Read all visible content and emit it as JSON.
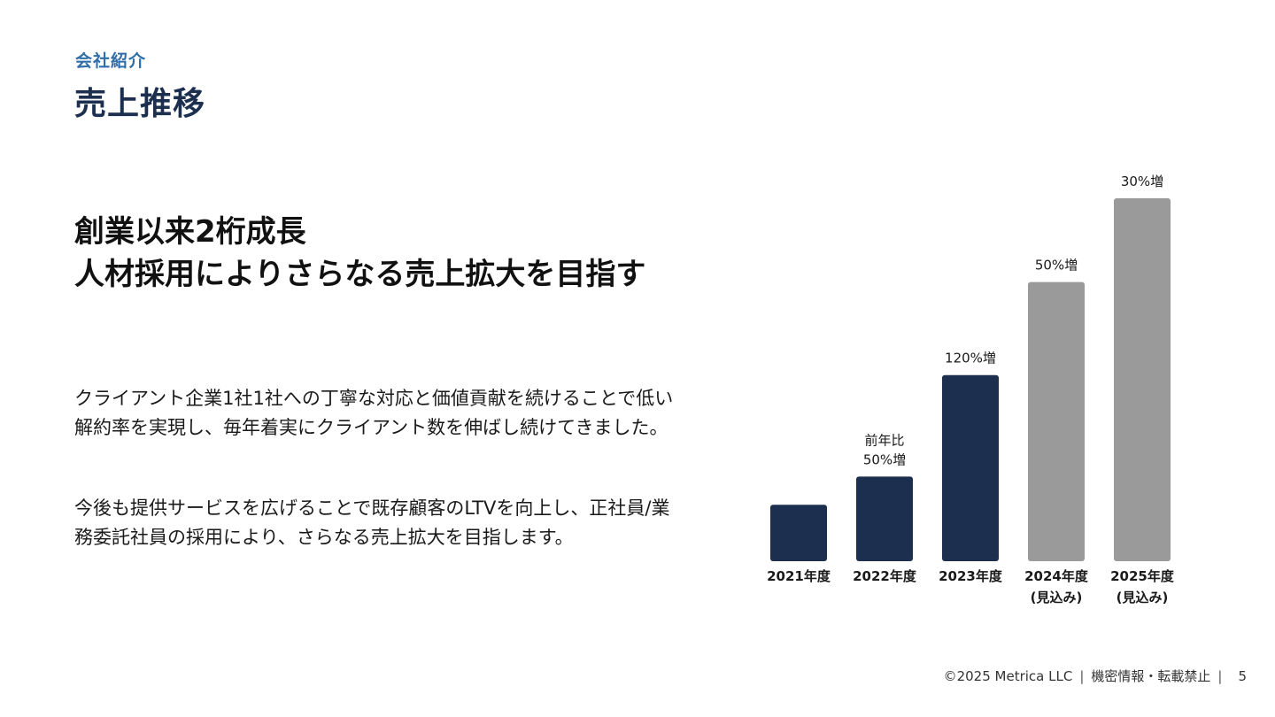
{
  "section_label": "会社紹介",
  "page_title": "売上推移",
  "headline": {
    "line1": "創業以来2桁成長",
    "line2": "人材採用によりさらなる売上拡大を目指す"
  },
  "body": {
    "p1": "クライアント企業1社1社への丁寧な対応と価値貢献を続けることで低い解約率を実現し、毎年着実にクライアント数を伸ばし続けてきました。",
    "p2": "今後も提供サービスを広げることで既存顧客のLTVを向上し、正社員/業務委託社員の採用により、さらなる売上拡大を目指します。"
  },
  "colors": {
    "actual": "#1c2f4f",
    "forecast": "#9a9a9a",
    "accent": "#2f6ea8"
  },
  "chart_data": {
    "type": "bar",
    "categories": [
      "2021年度",
      "2022年度",
      "2023年度",
      "2024年度\n(見込み)",
      "2025年度\n(見込み)"
    ],
    "values": [
      1.0,
      1.5,
      3.3,
      4.95,
      6.435
    ],
    "status": [
      "actual",
      "actual",
      "actual",
      "forecast",
      "forecast"
    ],
    "annotations": [
      "",
      "前年比\n50%増",
      "120%増",
      "50%増",
      "30%増"
    ],
    "title": "",
    "xlabel": "",
    "ylabel": "",
    "grid": false
  },
  "footer": {
    "copyright": "©2025 Metrica LLC",
    "notice": "機密情報・転載禁止",
    "separator": "|",
    "page": "5"
  }
}
